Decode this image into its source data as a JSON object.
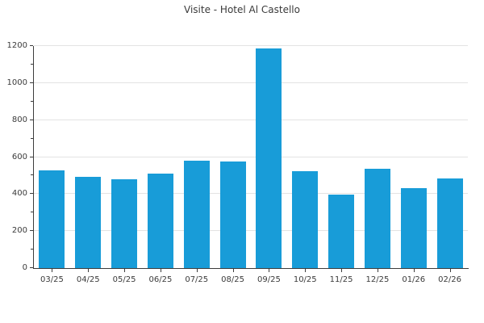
{
  "chart_data": {
    "type": "bar",
    "title": "Visite - Hotel Al Castello",
    "categories": [
      "03/25",
      "04/25",
      "05/25",
      "06/25",
      "07/25",
      "08/25",
      "09/25",
      "10/25",
      "11/25",
      "12/25",
      "01/26",
      "02/26"
    ],
    "values": [
      530,
      495,
      480,
      510,
      580,
      575,
      1185,
      525,
      395,
      535,
      430,
      485
    ],
    "xlabel": "",
    "ylabel": "",
    "ylim": [
      0,
      1200
    ],
    "yticks": [
      0,
      200,
      400,
      600,
      800,
      1000,
      1200
    ],
    "minor_ytick_interval": 100,
    "grid": "horizontal-major-only",
    "legend": "none",
    "colors": {
      "bar": "#189cd8",
      "grid": "#e3e3e3",
      "axis": "#3c3c3c",
      "text": "#3a3a3a"
    }
  }
}
